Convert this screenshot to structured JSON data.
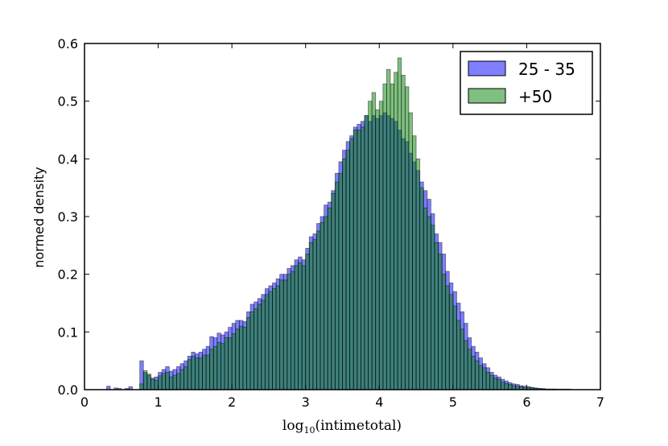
{
  "chart_data": {
    "type": "bar",
    "title": "",
    "xlabel": {
      "base": "log",
      "sub": "10",
      "rest": "(intimetotal)"
    },
    "ylabel": "normed density",
    "xlim": [
      0,
      7
    ],
    "ylim": [
      0,
      0.6
    ],
    "xticks": [
      "0",
      "1",
      "2",
      "3",
      "4",
      "5",
      "6",
      "7"
    ],
    "yticks": [
      "0.0",
      "0.1",
      "0.2",
      "0.3",
      "0.4",
      "0.5",
      "0.6"
    ],
    "grid": false,
    "legend_position": "top-right",
    "bin_start": 0.3,
    "bin_width": 0.05,
    "series": [
      {
        "name": "25 - 35",
        "color": "#0000ff",
        "values": [
          0.006,
          0.0,
          0.003,
          0.002,
          0.0,
          0.002,
          0.005,
          0.0,
          0.0,
          0.05,
          0.03,
          0.025,
          0.02,
          0.022,
          0.03,
          0.035,
          0.04,
          0.032,
          0.035,
          0.04,
          0.045,
          0.05,
          0.058,
          0.065,
          0.062,
          0.065,
          0.07,
          0.075,
          0.092,
          0.09,
          0.098,
          0.095,
          0.1,
          0.108,
          0.115,
          0.12,
          0.12,
          0.118,
          0.135,
          0.148,
          0.152,
          0.158,
          0.165,
          0.175,
          0.18,
          0.185,
          0.192,
          0.2,
          0.2,
          0.21,
          0.215,
          0.225,
          0.23,
          0.225,
          0.245,
          0.265,
          0.27,
          0.288,
          0.3,
          0.32,
          0.325,
          0.345,
          0.375,
          0.395,
          0.415,
          0.43,
          0.44,
          0.455,
          0.46,
          0.465,
          0.475,
          0.465,
          0.475,
          0.47,
          0.475,
          0.48,
          0.475,
          0.47,
          0.465,
          0.45,
          0.435,
          0.43,
          0.41,
          0.395,
          0.38,
          0.36,
          0.345,
          0.33,
          0.305,
          0.27,
          0.255,
          0.235,
          0.205,
          0.185,
          0.17,
          0.15,
          0.135,
          0.115,
          0.09,
          0.075,
          0.065,
          0.055,
          0.045,
          0.038,
          0.03,
          0.025,
          0.022,
          0.018,
          0.015,
          0.012,
          0.01,
          0.009,
          0.007,
          0.006,
          0.005,
          0.004,
          0.003,
          0.002,
          0.002,
          0.001,
          0.001,
          0.001,
          0.001,
          0.001,
          0.001,
          0.001,
          0.0,
          0.0
        ]
      },
      {
        "name": "+50",
        "color": "#008000",
        "values": [
          0.0,
          0.0,
          0.0,
          0.0,
          0.0,
          0.0,
          0.0,
          0.0,
          0.0,
          0.01,
          0.033,
          0.027,
          0.018,
          0.016,
          0.024,
          0.028,
          0.03,
          0.022,
          0.025,
          0.028,
          0.035,
          0.04,
          0.052,
          0.058,
          0.055,
          0.055,
          0.06,
          0.06,
          0.07,
          0.075,
          0.082,
          0.08,
          0.09,
          0.09,
          0.097,
          0.105,
          0.11,
          0.108,
          0.125,
          0.135,
          0.14,
          0.148,
          0.155,
          0.165,
          0.17,
          0.175,
          0.18,
          0.19,
          0.19,
          0.2,
          0.205,
          0.215,
          0.22,
          0.215,
          0.235,
          0.255,
          0.26,
          0.275,
          0.29,
          0.3,
          0.315,
          0.34,
          0.36,
          0.375,
          0.4,
          0.415,
          0.435,
          0.45,
          0.45,
          0.455,
          0.475,
          0.5,
          0.515,
          0.485,
          0.5,
          0.53,
          0.555,
          0.53,
          0.55,
          0.575,
          0.545,
          0.525,
          0.48,
          0.44,
          0.4,
          0.35,
          0.315,
          0.3,
          0.285,
          0.255,
          0.235,
          0.2,
          0.18,
          0.165,
          0.145,
          0.12,
          0.105,
          0.085,
          0.07,
          0.058,
          0.05,
          0.042,
          0.038,
          0.03,
          0.025,
          0.02,
          0.018,
          0.013,
          0.011,
          0.009,
          0.007,
          0.006,
          0.005,
          0.004,
          0.004,
          0.003,
          0.002,
          0.002,
          0.001,
          0.001,
          0.001,
          0.001,
          0.0,
          0.0,
          0.0,
          0.0,
          0.0,
          0.0
        ]
      }
    ]
  }
}
